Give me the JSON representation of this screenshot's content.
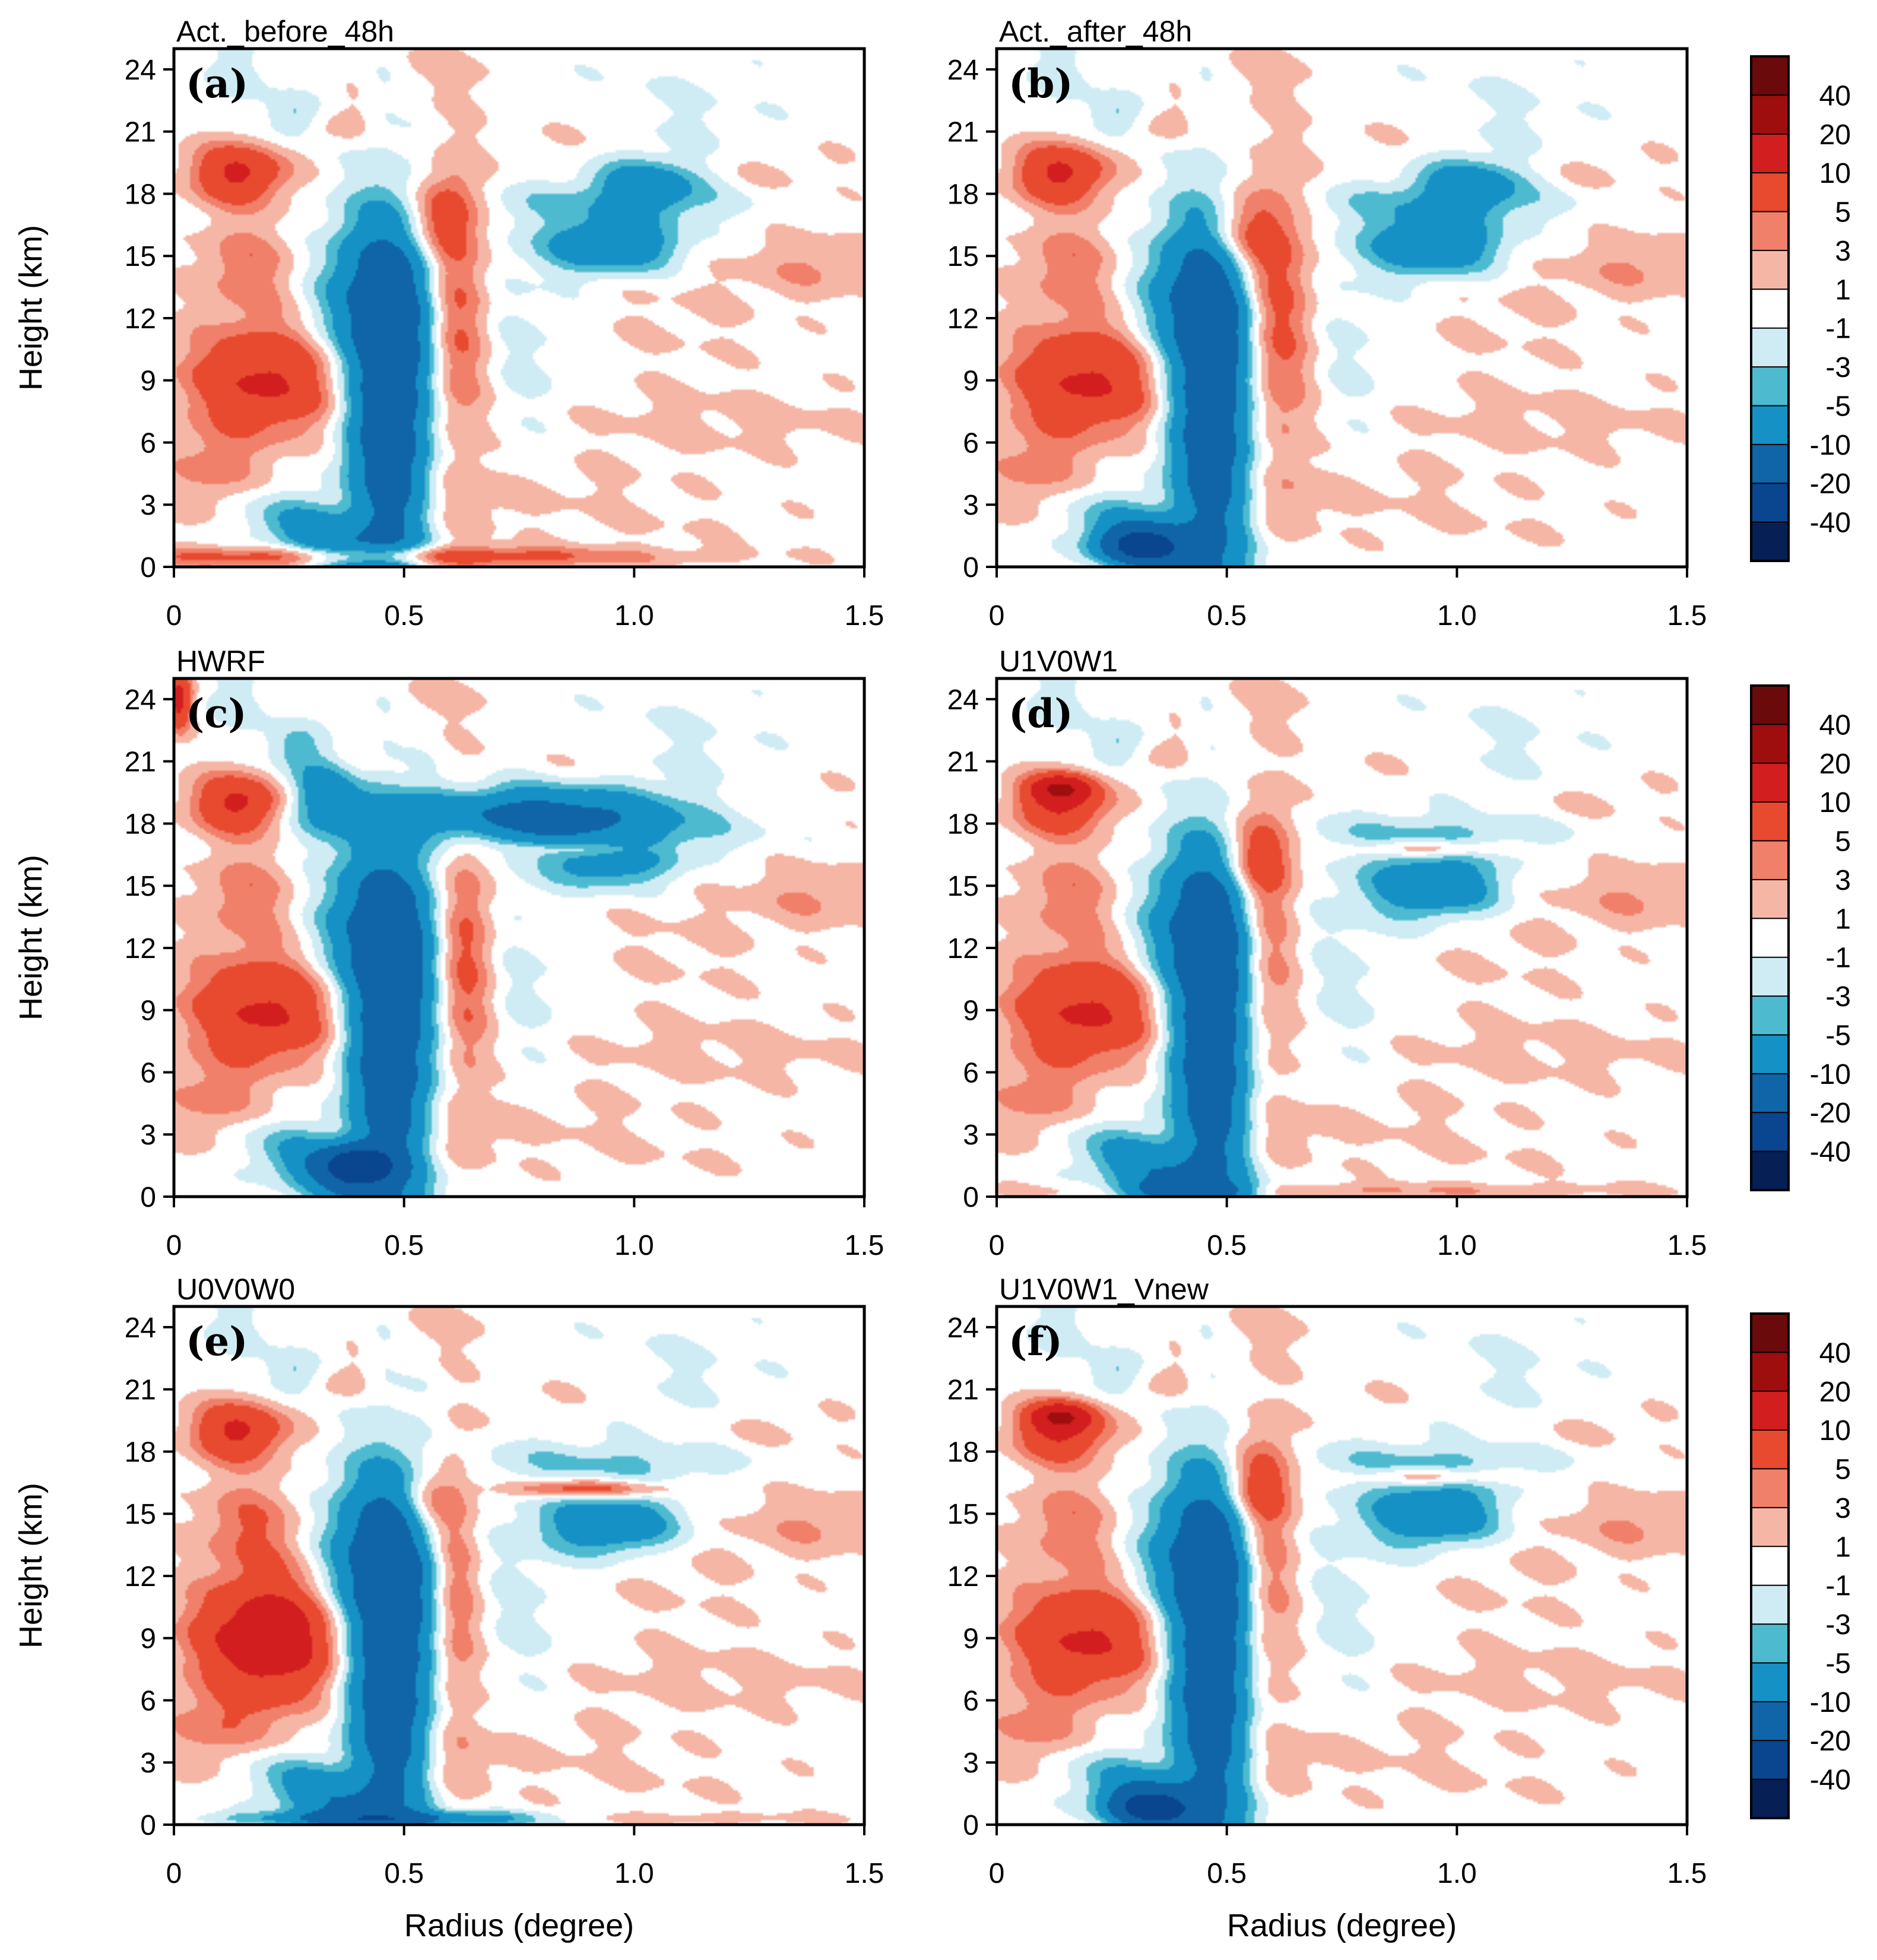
{
  "chart_data": {
    "type": "heatmap",
    "figure": "Radius-height filled contour cross sections (six panels) with shared discrete color bars",
    "x_axis": {
      "label": "Radius (degree)",
      "range": [
        0,
        1.5
      ],
      "ticks": [
        "0",
        "0.5",
        "1.0",
        "1.5"
      ],
      "tick_values": [
        0,
        0.5,
        1.0,
        1.5
      ]
    },
    "y_axis": {
      "label": "Height (km)",
      "range": [
        0,
        25
      ],
      "ticks": [
        "0",
        "3",
        "6",
        "9",
        "12",
        "15",
        "18",
        "21",
        "24"
      ],
      "tick_values": [
        0,
        3,
        6,
        9,
        12,
        15,
        18,
        21,
        24
      ]
    },
    "colorbar": {
      "labels": [
        "40",
        "20",
        "10",
        "5",
        "3",
        "1",
        "-1",
        "-3",
        "-5",
        "-10",
        "-20",
        "-40"
      ],
      "colors": [
        "#6b0a0a",
        "#9e0e0e",
        "#d21e1e",
        "#e84a2f",
        "#f0806a",
        "#f6b6a6",
        "#ffffff",
        "#cfecf4",
        "#4ebad0",
        "#1591c6",
        "#0f65a8",
        "#0a4590",
        "#061f55"
      ]
    },
    "panels": [
      {
        "label": "(a)",
        "title": "Act._before_48h"
      },
      {
        "label": "(b)",
        "title": "Act._after_48h"
      },
      {
        "label": "(c)",
        "title": "HWRF"
      },
      {
        "label": "(d)",
        "title": "U1V0W1"
      },
      {
        "label": "(e)",
        "title": "U0V0W0"
      },
      {
        "label": "(f)",
        "title": "U1V0W1_Vnew"
      }
    ]
  }
}
